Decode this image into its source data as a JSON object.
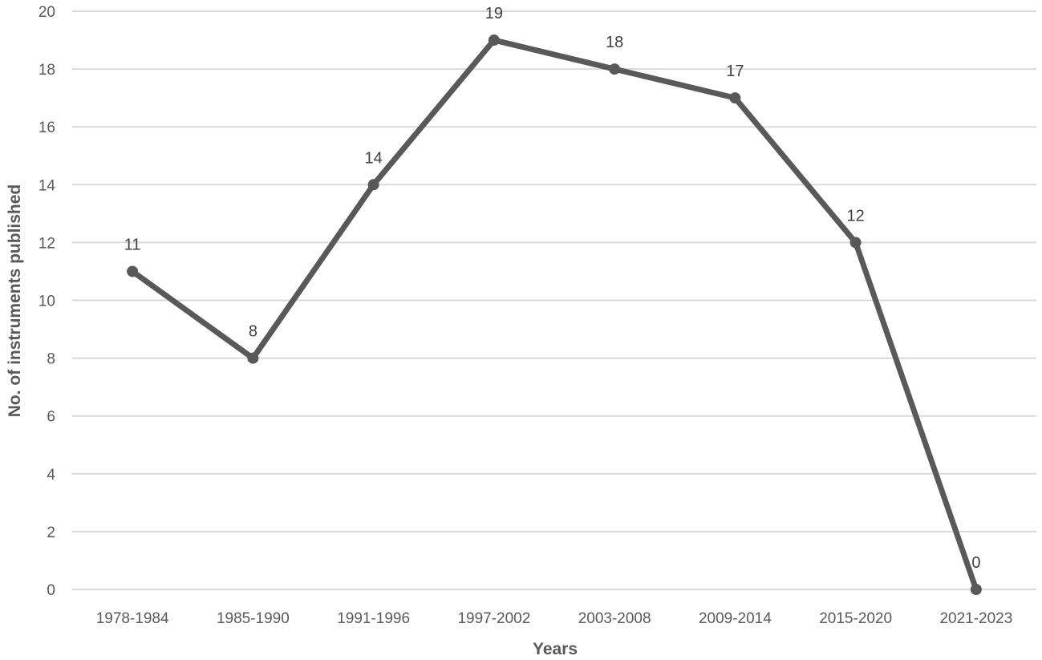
{
  "chart_data": {
    "type": "line",
    "title": "",
    "xlabel": "Years",
    "ylabel": "No. of instruments published",
    "categories": [
      "1978-1984",
      "1985-1990",
      "1991-1996",
      "1997-2002",
      "2003-2008",
      "2009-2014",
      "2015-2020",
      "2021-2023"
    ],
    "series": [
      {
        "values": [
          11,
          8,
          14,
          19,
          18,
          17,
          12,
          0
        ],
        "color": "#595959"
      }
    ],
    "ylim": [
      0,
      20
    ],
    "yticks": [
      0,
      2,
      4,
      6,
      8,
      10,
      12,
      14,
      16,
      18,
      20
    ],
    "data_labels": true,
    "grid": "horizontal",
    "legend": "none"
  }
}
